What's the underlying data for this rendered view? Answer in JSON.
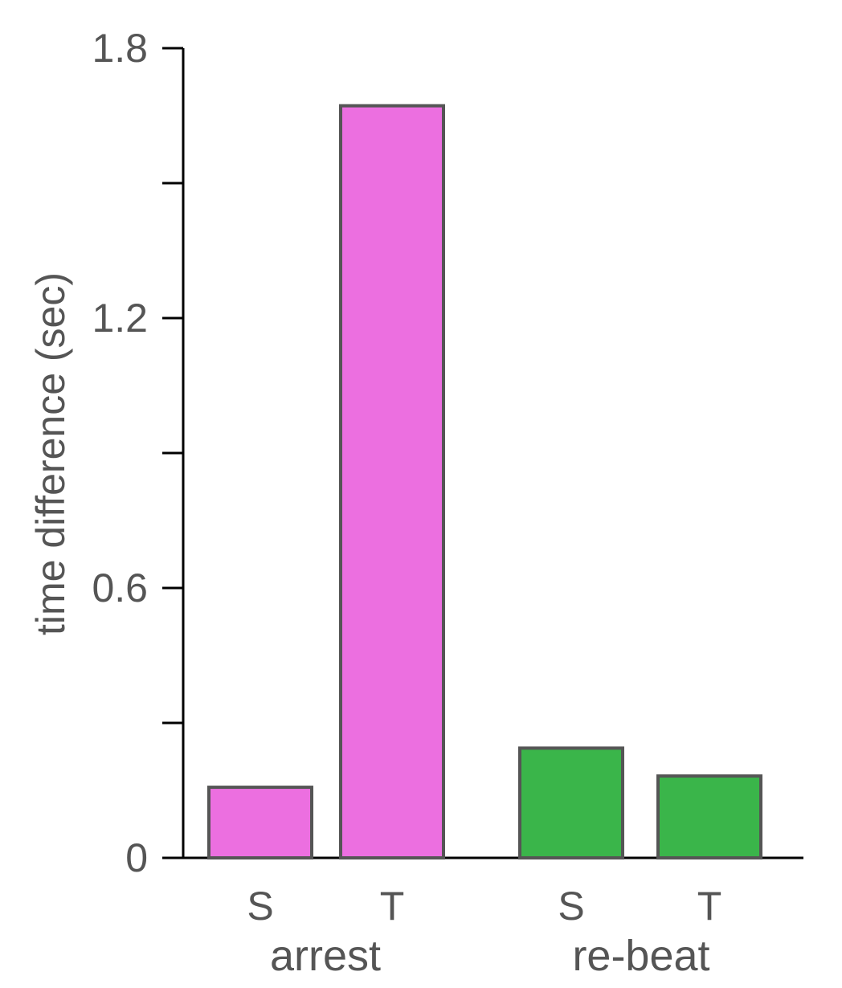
{
  "chart_data": {
    "type": "bar",
    "title": "",
    "xlabel": "",
    "ylabel": "time difference (sec)",
    "ylim": [
      0,
      1.8
    ],
    "yticks": [
      0,
      0.3,
      0.6,
      0.9,
      1.2,
      1.5,
      1.8
    ],
    "ytick_labels": [
      "0",
      "",
      "0.6",
      "",
      "1.2",
      "",
      "1.8"
    ],
    "grid": false,
    "groups": [
      {
        "label": "arrest",
        "color": "#ec6fe0",
        "bars": [
          {
            "category": "S",
            "value": 0.157
          },
          {
            "category": "T",
            "value": 1.672
          }
        ]
      },
      {
        "label": "re-beat",
        "color": "#3ab54a",
        "bars": [
          {
            "category": "S",
            "value": 0.244
          },
          {
            "category": "T",
            "value": 0.182
          }
        ]
      }
    ],
    "bar_edge_color": "#555555",
    "axis_color": "#000000"
  }
}
